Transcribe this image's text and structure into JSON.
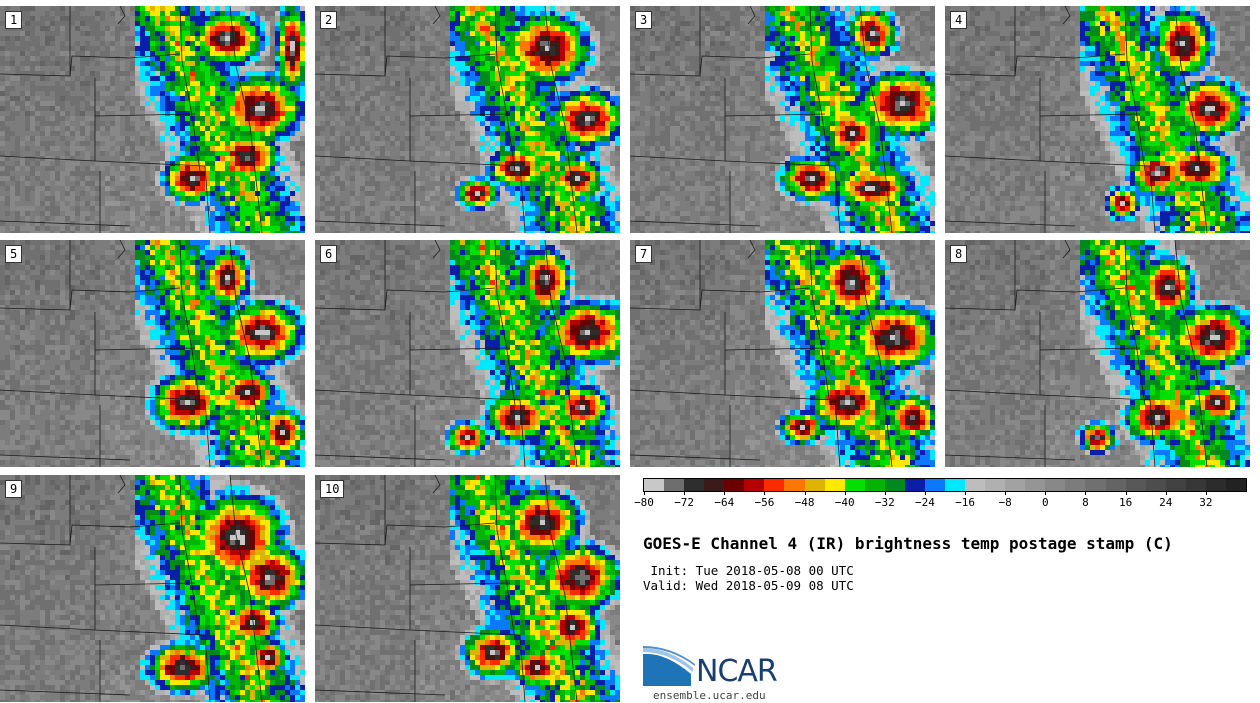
{
  "chart_data": {
    "type": "heatmap",
    "title": "GOES-E Channel 4 (IR) brightness temp postage stamp (C)",
    "init_line": " Init: Tue 2018-05-08 00 UTC",
    "valid_line": "Valid: Wed 2018-05-09 08 UTC",
    "units": "C",
    "members": [
      "1",
      "2",
      "3",
      "4",
      "5",
      "6",
      "7",
      "8",
      "9",
      "10"
    ],
    "colorbar": {
      "range": [
        -80,
        40
      ],
      "ticks": [
        "−80",
        "−72",
        "−64",
        "−56",
        "−48",
        "−40",
        "−32",
        "−24",
        "−16",
        "−8",
        "0",
        "8",
        "16",
        "24",
        "32"
      ],
      "tick_values": [
        -80,
        -72,
        -64,
        -56,
        -48,
        -40,
        -32,
        -24,
        -16,
        -8,
        0,
        8,
        16,
        24,
        32
      ],
      "bins": [
        {
          "from": -80,
          "to": -76,
          "color": "#c8c8c8"
        },
        {
          "from": -76,
          "to": -72,
          "color": "#6e6e6e"
        },
        {
          "from": -72,
          "to": -68,
          "color": "#2e2e2e"
        },
        {
          "from": -68,
          "to": -64,
          "color": "#3b1a1a"
        },
        {
          "from": -64,
          "to": -60,
          "color": "#6b0000"
        },
        {
          "from": -60,
          "to": -56,
          "color": "#b40000"
        },
        {
          "from": -56,
          "to": -52,
          "color": "#ff2a00"
        },
        {
          "from": -52,
          "to": -48,
          "color": "#ff7700"
        },
        {
          "from": -48,
          "to": -44,
          "color": "#ddb400"
        },
        {
          "from": -44,
          "to": -40,
          "color": "#ffe800"
        },
        {
          "from": -40,
          "to": -36,
          "color": "#00e000"
        },
        {
          "from": -36,
          "to": -32,
          "color": "#00b400"
        },
        {
          "from": -32,
          "to": -28,
          "color": "#008a1e"
        },
        {
          "from": -28,
          "to": -24,
          "color": "#0a1fa8"
        },
        {
          "from": -24,
          "to": -20,
          "color": "#0a78ff"
        },
        {
          "from": -20,
          "to": -16,
          "color": "#00e8ff"
        },
        {
          "from": -16,
          "to": -12,
          "color": "#bdbdbd"
        },
        {
          "from": -12,
          "to": -8,
          "color": "#b0b0b0"
        },
        {
          "from": -8,
          "to": -4,
          "color": "#a2a2a2"
        },
        {
          "from": -4,
          "to": 0,
          "color": "#959595"
        },
        {
          "from": 0,
          "to": 4,
          "color": "#888888"
        },
        {
          "from": 4,
          "to": 8,
          "color": "#7c7c7c"
        },
        {
          "from": 8,
          "to": 12,
          "color": "#707070"
        },
        {
          "from": 12,
          "to": 16,
          "color": "#646464"
        },
        {
          "from": 16,
          "to": 20,
          "color": "#585858"
        },
        {
          "from": 20,
          "to": 24,
          "color": "#4d4d4d"
        },
        {
          "from": 24,
          "to": 28,
          "color": "#424242"
        },
        {
          "from": 28,
          "to": 32,
          "color": "#373737"
        },
        {
          "from": 32,
          "to": 36,
          "color": "#2c2c2c"
        },
        {
          "from": 36,
          "to": 40,
          "color": "#222222"
        }
      ]
    }
  },
  "logo": {
    "name": "NCAR",
    "url": "ensemble.ucar.edu",
    "brand_blue": "#1f73b7",
    "text_color": "#1a3f6e"
  }
}
